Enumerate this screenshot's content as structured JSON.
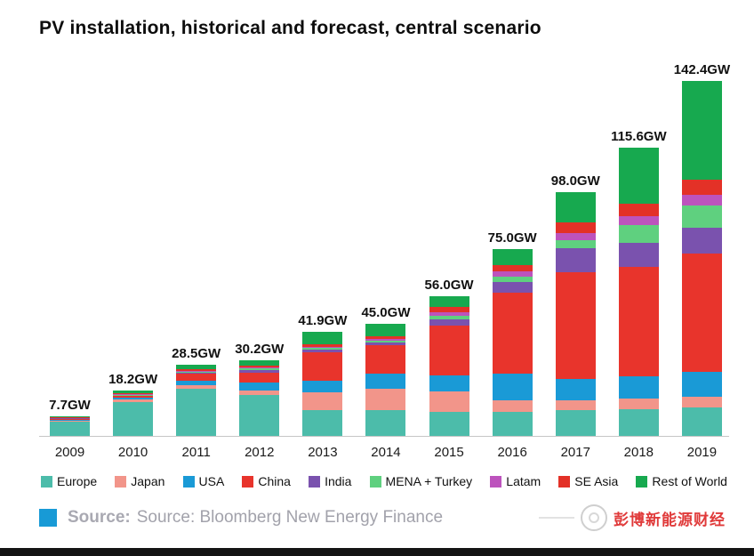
{
  "title": "PV installation, historical and forecast, central scenario",
  "source": {
    "label": "Source:",
    "text": "Source: Bloomberg New Energy Finance"
  },
  "watermark": "彭博新能源财经",
  "chart_data": {
    "type": "bar",
    "stacked": true,
    "unit": "GW",
    "title": "PV installation, historical and forecast, central scenario",
    "xlabel": "",
    "ylabel": "",
    "ylim": [
      0,
      150
    ],
    "grid": false,
    "legend_position": "bottom",
    "categories": [
      "2009",
      "2010",
      "2011",
      "2012",
      "2013",
      "2014",
      "2015",
      "2016",
      "2017",
      "2018",
      "2019"
    ],
    "totals_labels": [
      "7.7GW",
      "18.2GW",
      "28.5GW",
      "30.2GW",
      "41.9GW",
      "45.0GW",
      "56.0GW",
      "75.0GW",
      "98.0GW",
      "115.6GW",
      "142.4GW"
    ],
    "totals": [
      7.7,
      18.2,
      28.5,
      30.2,
      41.9,
      45.0,
      56.0,
      75.0,
      98.0,
      115.6,
      142.4
    ],
    "series": [
      {
        "name": "Europe",
        "color": "#4cbcaa",
        "values": [
          5.6,
          13.5,
          19.0,
          16.3,
          10.5,
          10.5,
          9.5,
          9.5,
          10.2,
          10.9,
          11.5
        ]
      },
      {
        "name": "Japan",
        "color": "#f2958a",
        "values": [
          0.5,
          1.0,
          1.3,
          2.0,
          6.9,
          8.4,
          8.4,
          4.9,
          4.2,
          4.2,
          4.2
        ]
      },
      {
        "name": "USA",
        "color": "#1a9ad6",
        "values": [
          0.5,
          0.9,
          1.9,
          3.2,
          4.6,
          6.0,
          6.3,
          10.5,
          8.4,
          8.8,
          10.0
        ]
      },
      {
        "name": "China",
        "color": "#e8342c",
        "values": [
          0.3,
          0.6,
          2.8,
          4.0,
          11.5,
          11.5,
          20.0,
          32.6,
          42.9,
          44.0,
          47.5
        ]
      },
      {
        "name": "India",
        "color": "#7a52ae",
        "values": [
          0.1,
          0.2,
          0.5,
          1.1,
          1.1,
          1.0,
          2.8,
          4.2,
          9.5,
          9.8,
          10.5
        ]
      },
      {
        "name": "MENA + Turkey",
        "color": "#5fd07f",
        "values": [
          0.1,
          0.2,
          0.3,
          0.4,
          0.6,
          0.8,
          1.4,
          2.1,
          3.5,
          7.0,
          8.8
        ]
      },
      {
        "name": "Latam",
        "color": "#bd53bd",
        "values": [
          0.1,
          0.2,
          0.3,
          0.5,
          0.6,
          0.8,
          1.3,
          2.1,
          2.8,
          3.5,
          4.2
        ]
      },
      {
        "name": "SE Asia",
        "color": "#e33127",
        "values": [
          0.2,
          0.4,
          0.6,
          0.7,
          1.0,
          1.2,
          2.1,
          2.8,
          4.2,
          4.9,
          6.3
        ]
      },
      {
        "name": "Rest of World",
        "color": "#17a94f",
        "values": [
          0.3,
          1.2,
          1.8,
          2.0,
          5.1,
          4.8,
          4.2,
          6.3,
          12.3,
          22.5,
          39.4
        ]
      }
    ]
  }
}
